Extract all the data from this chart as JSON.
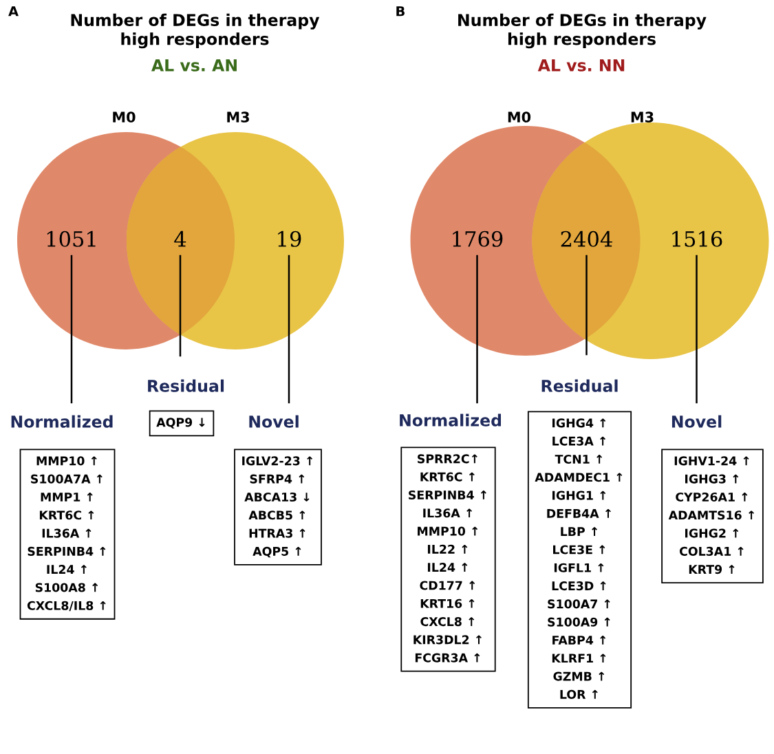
{
  "chart_data": [
    {
      "type": "other",
      "title": "Number of DEGs in therapy\nhigh responders",
      "subtitle": "AL vs. AN",
      "categories": [
        null,
        null,
        null
      ],
      "values": [
        1051,
        4,
        19
      ],
      "colors": [
        "#e0896a",
        "#e2a63c",
        "#e8c447"
      ],
      "data_labels": true,
      "annotations": [
        "A",
        "M0",
        "M3",
        "Normalized",
        "MMP10 ↑\nS100A7A ↑\nMMP1 ↑\nKRT6C ↑\nIL36A ↑\nSERPINB4 ↑\nIL24 ↑\nS100A8 ↑\nCXCL8/IL8 ↑",
        "Residual",
        "AQP9 ↓",
        "Novel",
        "IGLV2-23 ↑\nSFRP4 ↑\nABCA13 ↓\nABCB5 ↑\nHTRA3 ↑\nAQP5 ↑"
      ]
    },
    {
      "type": "other",
      "title": "Number of DEGs in therapy\nhigh responders",
      "subtitle": "AL vs. NN",
      "categories": [
        null,
        null,
        null
      ],
      "values": [
        1769,
        2404,
        1516
      ],
      "colors": [
        "#e0896a",
        "#e2a63c",
        "#e8c447"
      ],
      "data_labels": true,
      "annotations": [
        "B",
        "M0",
        "M3",
        "Normalized",
        "SPRR2C↑\nKRT6C ↑\nSERPINB4 ↑\nIL36A ↑\nMMP10 ↑\nIL22 ↑\nIL24 ↑\nCD177 ↑\nKRT16 ↑\nCXCL8 ↑\nKIR3DL2 ↑\nFCGR3A ↑",
        "Residual",
        "IGHG4 ↑\nLCE3A ↑\nTCN1 ↑\nADAMDEC1 ↑\nIGHG1 ↑\nDEFB4A ↑\nLBP ↑\nLCE3E ↑\nIGFL1 ↑\nLCE3D ↑\nS100A7 ↑\nS100A9 ↑\nFABP4 ↑\nKLRF1 ↑\nGZMB ↑\nLOR ↑",
        "Novel",
        "IGHV1-24 ↑\nIGHG3 ↑\nCYP26A1 ↑\nADAMTS16 ↑\nIGHG2 ↑\nCOL3A1 ↑\nKRT9 ↑"
      ]
    }
  ]
}
